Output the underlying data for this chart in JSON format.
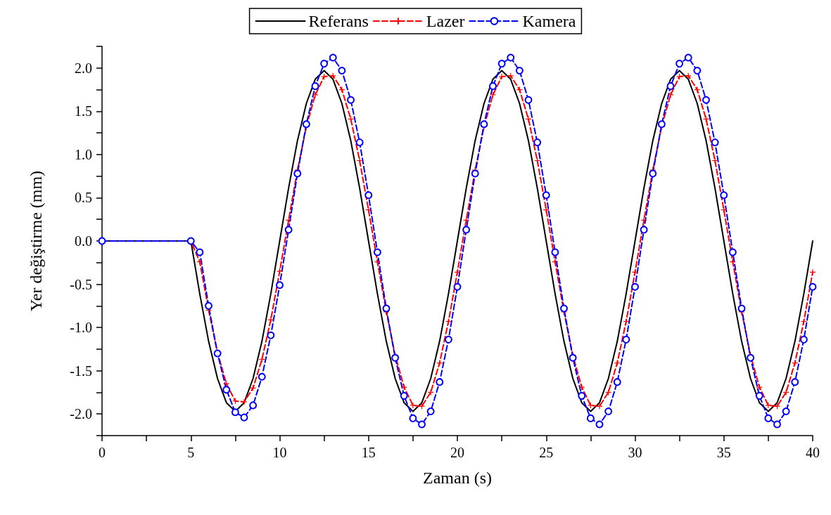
{
  "chart_data": {
    "type": "line",
    "xlabel": "Zaman (s)",
    "ylabel": "Yer değiştirme (mm)",
    "x": [
      0,
      5,
      5.5,
      6,
      6.5,
      7,
      7.5,
      8,
      8.5,
      9,
      9.5,
      10,
      10.5,
      11,
      11.5,
      12,
      12.5,
      13,
      13.5,
      14,
      14.5,
      15,
      15.5,
      16,
      16.5,
      17,
      17.5,
      18,
      18.5,
      19,
      19.5,
      20,
      20.5,
      21,
      21.5,
      22,
      22.5,
      23,
      23.5,
      24,
      24.5,
      25,
      25.5,
      26,
      26.5,
      27,
      27.5,
      28,
      28.5,
      29,
      29.5,
      30,
      30.5,
      31,
      31.5,
      32,
      32.5,
      33,
      33.5,
      34,
      34.5,
      35,
      35.5,
      36,
      36.5,
      37,
      37.5,
      38,
      38.5,
      39,
      39.5,
      40
    ],
    "series": [
      {
        "name": "Referans",
        "color": "#000000",
        "marker": "none",
        "line_style": "solid",
        "values": [
          0,
          0,
          -0.61,
          -1.16,
          -1.59,
          -1.87,
          -1.97,
          -1.87,
          -1.59,
          -1.16,
          -0.61,
          0,
          0.61,
          1.16,
          1.59,
          1.87,
          1.97,
          1.87,
          1.59,
          1.16,
          0.61,
          0,
          -0.61,
          -1.16,
          -1.59,
          -1.87,
          -1.97,
          -1.87,
          -1.59,
          -1.16,
          -0.61,
          0,
          0.61,
          1.16,
          1.59,
          1.87,
          1.97,
          1.87,
          1.59,
          1.16,
          0.61,
          0,
          -0.61,
          -1.16,
          -1.59,
          -1.87,
          -1.97,
          -1.87,
          -1.59,
          -1.16,
          -0.61,
          0,
          0.61,
          1.16,
          1.59,
          1.87,
          1.97,
          1.87,
          1.59,
          1.16,
          0.61,
          0,
          -0.61,
          -1.16,
          -1.59,
          -1.87,
          -1.97,
          -1.87,
          -1.59,
          -1.16,
          -0.61,
          0
        ]
      },
      {
        "name": "Lazer",
        "color": "#ff0000",
        "marker": "cross",
        "line_style": "dashed",
        "values": [
          0,
          0,
          -0.24,
          -0.8,
          -1.29,
          -1.65,
          -1.85,
          -1.86,
          -1.7,
          -1.37,
          -0.91,
          -0.35,
          0.24,
          0.82,
          1.32,
          1.69,
          1.9,
          1.91,
          1.75,
          1.41,
          0.93,
          0.36,
          -0.24,
          -0.82,
          -1.32,
          -1.69,
          -1.9,
          -1.91,
          -1.75,
          -1.41,
          -0.93,
          -0.36,
          0.24,
          0.82,
          1.32,
          1.69,
          1.9,
          1.91,
          1.75,
          1.41,
          0.93,
          0.36,
          -0.24,
          -0.82,
          -1.32,
          -1.69,
          -1.9,
          -1.91,
          -1.75,
          -1.41,
          -0.93,
          -0.36,
          0.24,
          0.82,
          1.32,
          1.69,
          1.9,
          1.91,
          1.75,
          1.41,
          0.93,
          0.36,
          -0.24,
          -0.82,
          -1.32,
          -1.69,
          -1.9,
          -1.91,
          -1.75,
          -1.41,
          -0.93,
          -0.36
        ]
      },
      {
        "name": "Kamera",
        "color": "#0000ff",
        "marker": "circle",
        "line_style": "dashed",
        "values": [
          0,
          0,
          -0.13,
          -0.75,
          -1.3,
          -1.72,
          -1.98,
          -2.04,
          -1.9,
          -1.57,
          -1.09,
          -0.51,
          0.13,
          0.78,
          1.35,
          1.79,
          2.05,
          2.12,
          1.97,
          1.63,
          1.14,
          0.53,
          -0.13,
          -0.78,
          -1.35,
          -1.79,
          -2.05,
          -2.12,
          -1.97,
          -1.63,
          -1.14,
          -0.53,
          0.13,
          0.78,
          1.35,
          1.79,
          2.05,
          2.12,
          1.97,
          1.63,
          1.14,
          0.53,
          -0.13,
          -0.78,
          -1.35,
          -1.79,
          -2.05,
          -2.12,
          -1.97,
          -1.63,
          -1.14,
          -0.53,
          0.13,
          0.78,
          1.35,
          1.79,
          2.05,
          2.12,
          1.97,
          1.63,
          1.14,
          0.53,
          -0.13,
          -0.78,
          -1.35,
          -1.79,
          -2.05,
          -2.12,
          -1.97,
          -1.63,
          -1.14,
          -0.53
        ]
      }
    ],
    "xlim": [
      0,
      40
    ],
    "xticks": [
      0,
      {
        "value": 2.5,
        "label": null
      },
      5,
      {
        "value": 7.5,
        "label": null
      },
      10,
      {
        "value": 12.5,
        "label": null
      },
      15,
      {
        "value": 17.5,
        "label": null
      },
      20,
      {
        "value": 22.5,
        "label": null
      },
      25,
      {
        "value": 27.5,
        "label": null
      },
      30,
      {
        "value": 32.5,
        "label": null
      },
      35,
      {
        "value": 37.5,
        "label": null
      },
      40
    ],
    "ylim": [
      -2.25,
      2.25
    ],
    "yticks": [
      {
        "value": -2.25,
        "label": null
      },
      {
        "value": -2,
        "label": "-2.0"
      },
      {
        "value": -1.75,
        "label": null
      },
      {
        "value": -1.5,
        "label": "-1.5"
      },
      {
        "value": -1.25,
        "label": null
      },
      {
        "value": -1,
        "label": "-1.0"
      },
      {
        "value": -0.75,
        "label": null
      },
      {
        "value": -0.5,
        "label": "-0.5"
      },
      {
        "value": -0.25,
        "label": null
      },
      {
        "value": 0,
        "label": "0.0"
      },
      {
        "value": 0.25,
        "label": null
      },
      {
        "value": 0.5,
        "label": "0.5"
      },
      {
        "value": 0.75,
        "label": null
      },
      {
        "value": 1,
        "label": "1.0"
      },
      {
        "value": 1.25,
        "label": null
      },
      {
        "value": 1.5,
        "label": "1.5"
      },
      {
        "value": 1.75,
        "label": null
      },
      {
        "value": 2,
        "label": "2.0"
      },
      {
        "value": 2.25,
        "label": null
      }
    ],
    "grid": false,
    "legend": "top"
  }
}
